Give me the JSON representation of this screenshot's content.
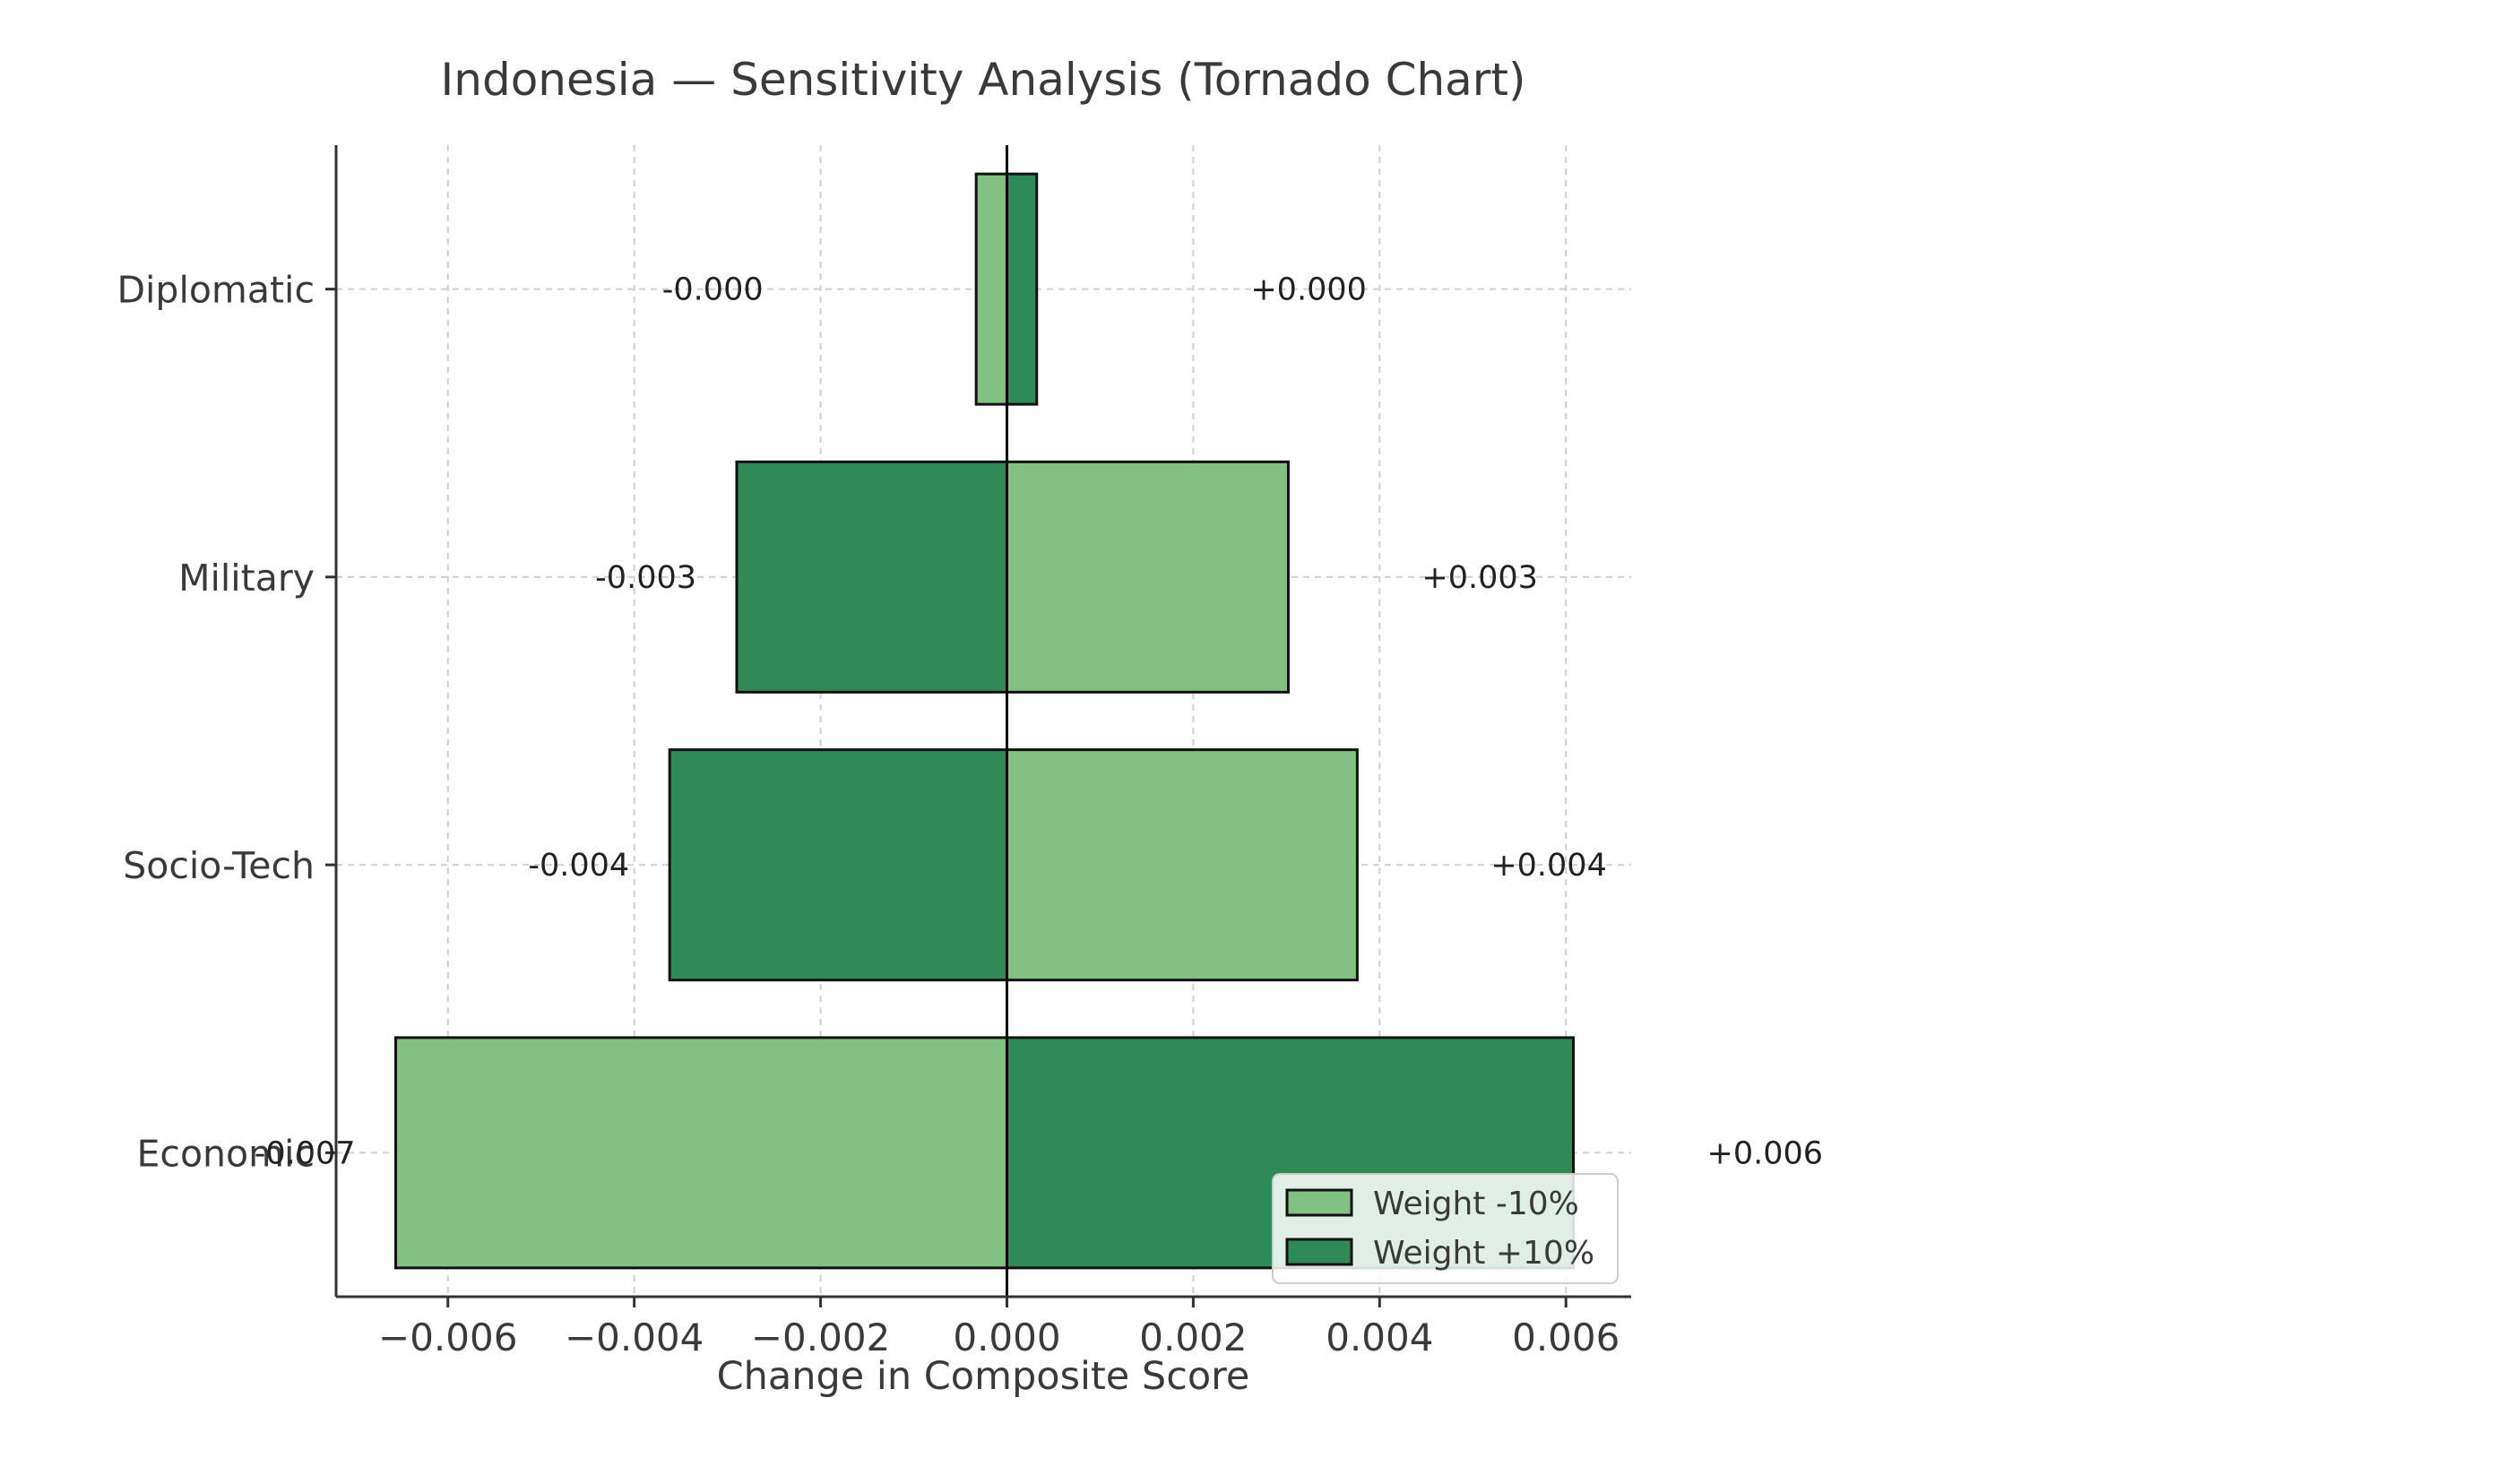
{
  "chart_data": {
    "type": "bar",
    "orientation": "horizontal",
    "title": "Indonesia — Sensitivity Analysis (Tornado Chart)",
    "xlabel": "Change in Composite Score",
    "ylabel": "",
    "xlim": [
      -0.0072,
      0.0067
    ],
    "xticks": [
      -0.006,
      -0.004,
      -0.002,
      0.0,
      0.002,
      0.004,
      0.006
    ],
    "xtick_labels": [
      "−0.006",
      "−0.004",
      "−0.002",
      "0.000",
      "0.002",
      "0.004",
      "0.006"
    ],
    "categories": [
      "Diplomatic",
      "Military",
      "Socio-Tech",
      "Economic"
    ],
    "series": [
      {
        "name": "Weight -10%",
        "color": "#82c182",
        "values": [
          -0.00033,
          0.00302,
          0.00376,
          -0.00656
        ],
        "labels": [
          "-0.000",
          "+0.003",
          "+0.004",
          "-0.007"
        ]
      },
      {
        "name": "Weight +10%",
        "color": "#2e8b57",
        "values": [
          0.00032,
          -0.0029,
          -0.00362,
          0.00608
        ],
        "labels": [
          "+0.000",
          "-0.003",
          "-0.004",
          "+0.006"
        ]
      }
    ],
    "grid": true,
    "legend_position": "lower-right"
  }
}
